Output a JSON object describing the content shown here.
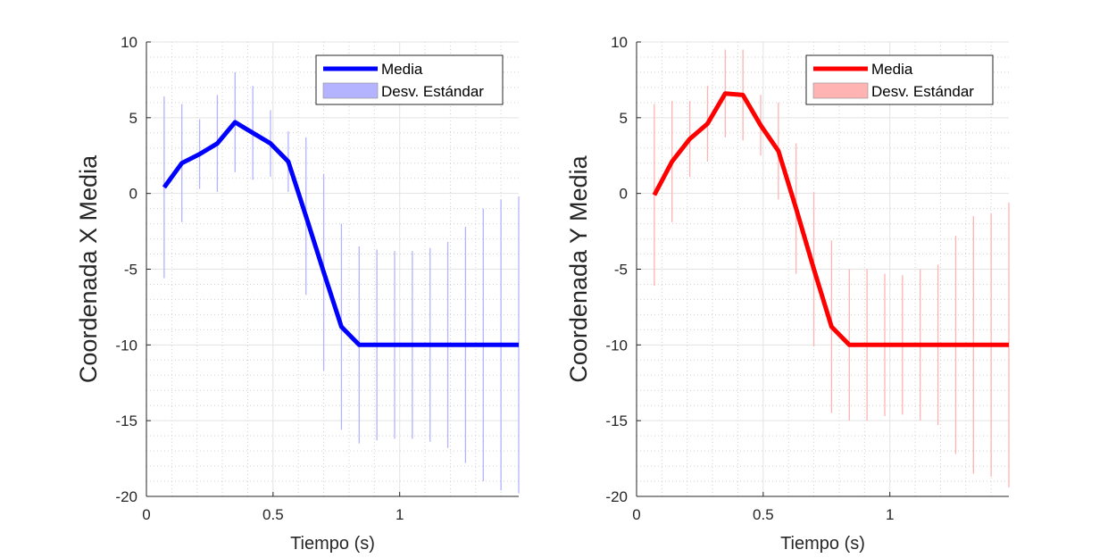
{
  "chart_data": [
    {
      "type": "line",
      "xlabel": "Tiempo (s)",
      "ylabel": "Coordenada X Media",
      "xlim": [
        0,
        1.47
      ],
      "ylim": [
        -20,
        10
      ],
      "xticks": [
        0,
        0.5,
        1
      ],
      "xtick_labels": [
        "0",
        "0.5",
        "1"
      ],
      "yticks": [
        10,
        5,
        0,
        -5,
        -10,
        -15,
        -20
      ],
      "ytick_labels": [
        "10",
        "5",
        "0",
        "-5",
        "-10",
        "-15",
        "-20"
      ],
      "grid": true,
      "minor_grid": true,
      "legend_position": "top-right",
      "color": "#0000ff",
      "band_color": "#b3b3ff",
      "x": [
        0.07,
        0.14,
        0.21,
        0.28,
        0.35,
        0.42,
        0.49,
        0.56,
        0.63,
        0.7,
        0.77,
        0.84,
        0.91,
        0.98,
        1.05,
        1.12,
        1.19,
        1.26,
        1.33,
        1.4,
        1.47
      ],
      "series": [
        {
          "name": "Media",
          "values": [
            0.4,
            2.0,
            2.6,
            3.3,
            4.7,
            4.0,
            3.3,
            2.1,
            -1.5,
            -5.2,
            -8.8,
            -10.0,
            -10.0,
            -10.0,
            -10.0,
            -10.0,
            -10.0,
            -10.0,
            -10.0,
            -10.0,
            -10.0
          ]
        },
        {
          "name": "Desv. Estándar",
          "values": [
            6.0,
            3.9,
            2.3,
            3.2,
            3.3,
            3.1,
            2.2,
            2.0,
            5.2,
            6.5,
            6.8,
            6.5,
            6.3,
            6.2,
            6.2,
            6.4,
            6.8,
            7.8,
            9.0,
            9.6,
            9.8
          ]
        }
      ]
    },
    {
      "type": "line",
      "xlabel": "Tiempo (s)",
      "ylabel": "Coordenada Y Media",
      "xlim": [
        0,
        1.47
      ],
      "ylim": [
        -20,
        10
      ],
      "xticks": [
        0,
        0.5,
        1
      ],
      "xtick_labels": [
        "0",
        "0.5",
        "1"
      ],
      "yticks": [
        10,
        5,
        0,
        -5,
        -10,
        -15,
        -20
      ],
      "ytick_labels": [
        "10",
        "5",
        "0",
        "-5",
        "-10",
        "-15",
        "-20"
      ],
      "grid": true,
      "minor_grid": true,
      "legend_position": "top-right",
      "color": "#ff0000",
      "band_color": "#ffb3b3",
      "x": [
        0.07,
        0.14,
        0.21,
        0.28,
        0.35,
        0.42,
        0.49,
        0.56,
        0.63,
        0.7,
        0.77,
        0.84,
        0.91,
        0.98,
        1.05,
        1.12,
        1.19,
        1.26,
        1.33,
        1.4,
        1.47
      ],
      "series": [
        {
          "name": "Media",
          "values": [
            -0.1,
            2.1,
            3.6,
            4.6,
            6.6,
            6.5,
            4.5,
            2.8,
            -1.0,
            -5.0,
            -8.8,
            -10.0,
            -10.0,
            -10.0,
            -10.0,
            -10.0,
            -10.0,
            -10.0,
            -10.0,
            -10.0,
            -10.0
          ]
        },
        {
          "name": "Desv. Estándar",
          "values": [
            6.0,
            4.0,
            2.5,
            2.5,
            2.9,
            3.0,
            2.0,
            3.2,
            4.3,
            5.1,
            5.7,
            5.0,
            5.0,
            4.7,
            4.6,
            5.0,
            5.3,
            7.2,
            8.5,
            8.7,
            9.4
          ]
        }
      ]
    }
  ]
}
